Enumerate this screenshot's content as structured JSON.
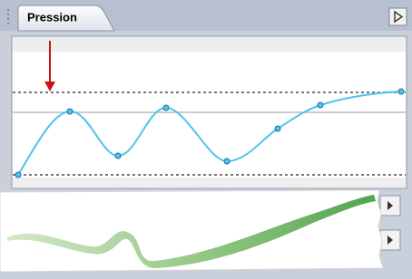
{
  "header": {
    "title": "Pression"
  }
}
